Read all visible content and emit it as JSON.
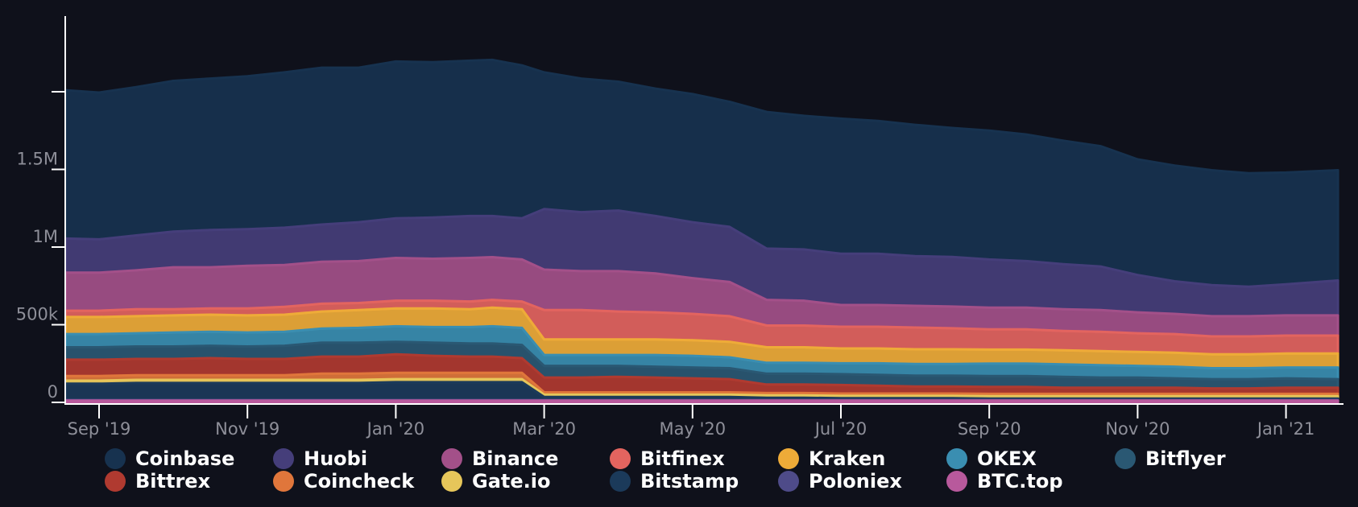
{
  "colors": {
    "background": "#0f111b",
    "axis": "#ffffff",
    "tick_text": "#8e8f99"
  },
  "chart_data": {
    "type": "area",
    "stacked": true,
    "title": "",
    "xlabel": "",
    "ylabel": "",
    "ylim": [
      0,
      2500000
    ],
    "yticks": [
      {
        "value": 0,
        "label": "0"
      },
      {
        "value": 500000,
        "label": "500k"
      },
      {
        "value": 1000000,
        "label": "1M"
      },
      {
        "value": 1500000,
        "label": "1.5M"
      },
      {
        "value": 2000000,
        "label": ""
      }
    ],
    "xticks": [
      {
        "x": 1,
        "label": "Sep '19"
      },
      {
        "x": 3,
        "label": "Nov '19"
      },
      {
        "x": 5,
        "label": "Jan '20"
      },
      {
        "x": 7,
        "label": "Mar '20"
      },
      {
        "x": 9,
        "label": "May '20"
      },
      {
        "x": 11,
        "label": "Jul '20"
      },
      {
        "x": 13,
        "label": "Sep '20"
      },
      {
        "x": 15,
        "label": "Nov '20"
      },
      {
        "x": 17,
        "label": "Jan '21"
      }
    ],
    "x": [
      0.55,
      1,
      1.5,
      2,
      2.5,
      3,
      3.5,
      4,
      4.5,
      5,
      5.5,
      6,
      6.3,
      6.7,
      7,
      7.5,
      8,
      8.5,
      9,
      9.5,
      10,
      10.5,
      11,
      11.5,
      12,
      12.5,
      13,
      13.5,
      14,
      14.5,
      15,
      15.5,
      16,
      16.5,
      17,
      17.7
    ],
    "series": [
      {
        "name": "BTC.top",
        "color": "#b8599c",
        "values": [
          12000,
          12000,
          12000,
          12000,
          12000,
          12000,
          12000,
          12000,
          12000,
          12000,
          12000,
          12000,
          12000,
          12000,
          12000,
          12000,
          12000,
          12000,
          12000,
          12000,
          12000,
          12000,
          12000,
          12000,
          12000,
          12000,
          12000,
          12000,
          12000,
          12000,
          12000,
          12000,
          12000,
          12000,
          12000,
          12000
        ]
      },
      {
        "name": "Poloniex",
        "color": "#4e4b89",
        "values": [
          3000,
          3000,
          3000,
          3000,
          3000,
          3000,
          3000,
          3000,
          3000,
          3000,
          3000,
          3000,
          3000,
          3000,
          3000,
          3000,
          3000,
          3000,
          3000,
          3000,
          3000,
          3000,
          3000,
          3000,
          3000,
          3000,
          3000,
          3000,
          3000,
          3000,
          3000,
          3000,
          3000,
          3000,
          3000,
          3000
        ]
      },
      {
        "name": "Bitstamp",
        "color": "#1b3a5a",
        "values": [
          105000,
          105000,
          110000,
          110000,
          110000,
          110000,
          110000,
          110000,
          110000,
          115000,
          115000,
          115000,
          115000,
          115000,
          20000,
          20000,
          20000,
          20000,
          20000,
          20000,
          15000,
          15000,
          12000,
          12000,
          12000,
          12000,
          10000,
          10000,
          10000,
          10000,
          10000,
          10000,
          10000,
          10000,
          10000,
          10000
        ]
      },
      {
        "name": "Gate.io",
        "color": "#e6c65a",
        "values": [
          20000,
          20000,
          20000,
          20000,
          20000,
          20000,
          20000,
          20000,
          20000,
          20000,
          20000,
          20000,
          20000,
          20000,
          15000,
          15000,
          15000,
          15000,
          15000,
          15000,
          15000,
          15000,
          15000,
          15000,
          15000,
          15000,
          15000,
          15000,
          15000,
          15000,
          15000,
          15000,
          15000,
          15000,
          15000,
          15000
        ]
      },
      {
        "name": "Coincheck",
        "color": "#e0763b",
        "values": [
          30000,
          30000,
          30000,
          30000,
          30000,
          30000,
          30000,
          40000,
          40000,
          40000,
          40000,
          40000,
          40000,
          40000,
          15000,
          15000,
          15000,
          15000,
          15000,
          15000,
          15000,
          15000,
          15000,
          15000,
          15000,
          15000,
          15000,
          15000,
          15000,
          15000,
          15000,
          15000,
          15000,
          15000,
          15000,
          15000
        ]
      },
      {
        "name": "Bittrex",
        "color": "#b03a30",
        "values": [
          105000,
          105000,
          105000,
          105000,
          110000,
          105000,
          105000,
          110000,
          110000,
          120000,
          110000,
          105000,
          105000,
          95000,
          95000,
          95000,
          100000,
          95000,
          90000,
          85000,
          55000,
          55000,
          55000,
          50000,
          45000,
          45000,
          45000,
          45000,
          40000,
          40000,
          40000,
          40000,
          35000,
          35000,
          40000,
          40000
        ]
      },
      {
        "name": "Bitflyer",
        "color": "#2a5873",
        "values": [
          80000,
          80000,
          80000,
          80000,
          80000,
          80000,
          85000,
          90000,
          90000,
          80000,
          85000,
          85000,
          85000,
          85000,
          75000,
          75000,
          70000,
          70000,
          70000,
          70000,
          70000,
          70000,
          70000,
          70000,
          70000,
          70000,
          70000,
          70000,
          70000,
          65000,
          65000,
          60000,
          60000,
          60000,
          60000,
          55000
        ]
      },
      {
        "name": "OKEX",
        "color": "#3a8eb1",
        "values": [
          85000,
          85000,
          85000,
          90000,
          90000,
          90000,
          90000,
          90000,
          95000,
          100000,
          100000,
          105000,
          110000,
          110000,
          70000,
          70000,
          70000,
          75000,
          75000,
          70000,
          70000,
          70000,
          70000,
          75000,
          75000,
          75000,
          80000,
          80000,
          80000,
          80000,
          75000,
          75000,
          70000,
          70000,
          70000,
          75000
        ]
      },
      {
        "name": "Kraken",
        "color": "#eeab38",
        "values": [
          110000,
          110000,
          110000,
          110000,
          110000,
          110000,
          110000,
          110000,
          115000,
          115000,
          120000,
          115000,
          120000,
          120000,
          100000,
          100000,
          100000,
          100000,
          100000,
          100000,
          100000,
          100000,
          95000,
          95000,
          95000,
          95000,
          90000,
          90000,
          90000,
          90000,
          90000,
          90000,
          90000,
          90000,
          90000,
          90000
        ]
      },
      {
        "name": "Bitfinex",
        "color": "#e3645f",
        "values": [
          40000,
          40000,
          45000,
          40000,
          40000,
          45000,
          50000,
          50000,
          45000,
          50000,
          50000,
          50000,
          50000,
          50000,
          190000,
          190000,
          180000,
          175000,
          170000,
          165000,
          140000,
          140000,
          140000,
          140000,
          140000,
          135000,
          130000,
          130000,
          125000,
          125000,
          120000,
          120000,
          115000,
          115000,
          115000,
          115000
        ]
      },
      {
        "name": "Binance",
        "color": "#a35089",
        "values": [
          245000,
          245000,
          250000,
          270000,
          265000,
          275000,
          270000,
          270000,
          270000,
          275000,
          270000,
          280000,
          275000,
          270000,
          260000,
          250000,
          260000,
          250000,
          230000,
          220000,
          165000,
          160000,
          140000,
          140000,
          140000,
          140000,
          140000,
          140000,
          140000,
          140000,
          135000,
          130000,
          130000,
          130000,
          130000,
          130000
        ]
      },
      {
        "name": "Huobi",
        "color": "#453e7a",
        "values": [
          220000,
          215000,
          225000,
          230000,
          240000,
          235000,
          240000,
          240000,
          250000,
          255000,
          265000,
          270000,
          265000,
          265000,
          390000,
          380000,
          390000,
          370000,
          360000,
          355000,
          330000,
          330000,
          330000,
          330000,
          320000,
          320000,
          310000,
          300000,
          290000,
          280000,
          240000,
          210000,
          200000,
          190000,
          200000,
          225000
        ]
      },
      {
        "name": "Coinbase",
        "color": "#17324f",
        "values": [
          955000,
          945000,
          955000,
          970000,
          975000,
          985000,
          1000000,
          1010000,
          995000,
          1010000,
          1000000,
          1000000,
          1005000,
          985000,
          880000,
          860000,
          830000,
          820000,
          825000,
          805000,
          880000,
          860000,
          870000,
          855000,
          845000,
          830000,
          830000,
          815000,
          795000,
          775000,
          745000,
          745000,
          740000,
          730000,
          720000,
          710000
        ]
      }
    ]
  },
  "legend": [
    {
      "name": "Coinbase",
      "color": "#17324f"
    },
    {
      "name": "Huobi",
      "color": "#453e7a"
    },
    {
      "name": "Binance",
      "color": "#a35089"
    },
    {
      "name": "Bitfinex",
      "color": "#e3645f"
    },
    {
      "name": "Kraken",
      "color": "#eeab38"
    },
    {
      "name": "OKEX",
      "color": "#3a8eb1"
    },
    {
      "name": "Bitflyer",
      "color": "#2a5873"
    },
    {
      "name": "Bittrex",
      "color": "#b03a30"
    },
    {
      "name": "Coincheck",
      "color": "#e0763b"
    },
    {
      "name": "Gate.io",
      "color": "#e6c65a"
    },
    {
      "name": "Bitstamp",
      "color": "#1b3a5a"
    },
    {
      "name": "Poloniex",
      "color": "#4e4b89"
    },
    {
      "name": "BTC.top",
      "color": "#b8599c"
    }
  ]
}
